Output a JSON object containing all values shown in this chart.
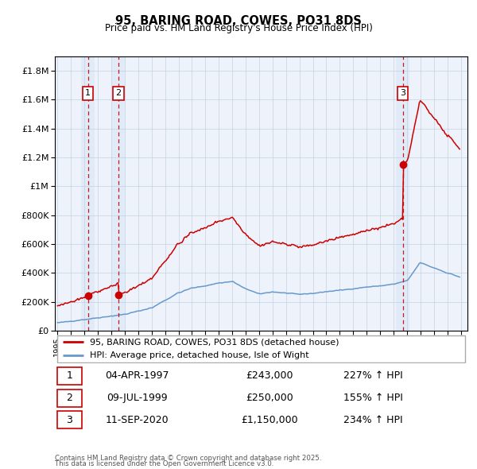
{
  "title": "95, BARING ROAD, COWES, PO31 8DS",
  "subtitle": "Price paid vs. HM Land Registry's House Price Index (HPI)",
  "legend_line1": "95, BARING ROAD, COWES, PO31 8DS (detached house)",
  "legend_line2": "HPI: Average price, detached house, Isle of Wight",
  "footer1": "Contains HM Land Registry data © Crown copyright and database right 2025.",
  "footer2": "This data is licensed under the Open Government Licence v3.0.",
  "ylim": [
    0,
    1900000
  ],
  "xlim": [
    1994.8,
    2025.5
  ],
  "yticks": [
    0,
    200000,
    400000,
    600000,
    800000,
    1000000,
    1200000,
    1400000,
    1600000,
    1800000
  ],
  "ytick_labels": [
    "£0",
    "£200K",
    "£400K",
    "£600K",
    "£800K",
    "£1M",
    "£1.2M",
    "£1.4M",
    "£1.6M",
    "£1.8M"
  ],
  "xticks": [
    1995,
    1996,
    1997,
    1998,
    1999,
    2000,
    2001,
    2002,
    2003,
    2004,
    2005,
    2006,
    2007,
    2008,
    2009,
    2010,
    2011,
    2012,
    2013,
    2014,
    2015,
    2016,
    2017,
    2018,
    2019,
    2020,
    2021,
    2022,
    2023,
    2024,
    2025
  ],
  "red_line_color": "#cc0000",
  "blue_line_color": "#6699cc",
  "plot_bg_color": "#eef2fb",
  "grid_color": "#bbccdd",
  "sale1_date": 1997.27,
  "sale1_price": 243000,
  "sale2_date": 1999.53,
  "sale2_price": 250000,
  "sale3_date": 2020.7,
  "sale3_price": 1150000,
  "sale1_hpi": 80000,
  "sale2_hpi": 107000,
  "sale3_hpi": 346000,
  "table_data": [
    {
      "num": "1",
      "date": "04-APR-1997",
      "price": "£243,000",
      "hpi": "227% ↑ HPI"
    },
    {
      "num": "2",
      "date": "09-JUL-1999",
      "price": "£250,000",
      "hpi": "155% ↑ HPI"
    },
    {
      "num": "3",
      "date": "11-SEP-2020",
      "price": "£1,150,000",
      "hpi": "234% ↑ HPI"
    }
  ]
}
